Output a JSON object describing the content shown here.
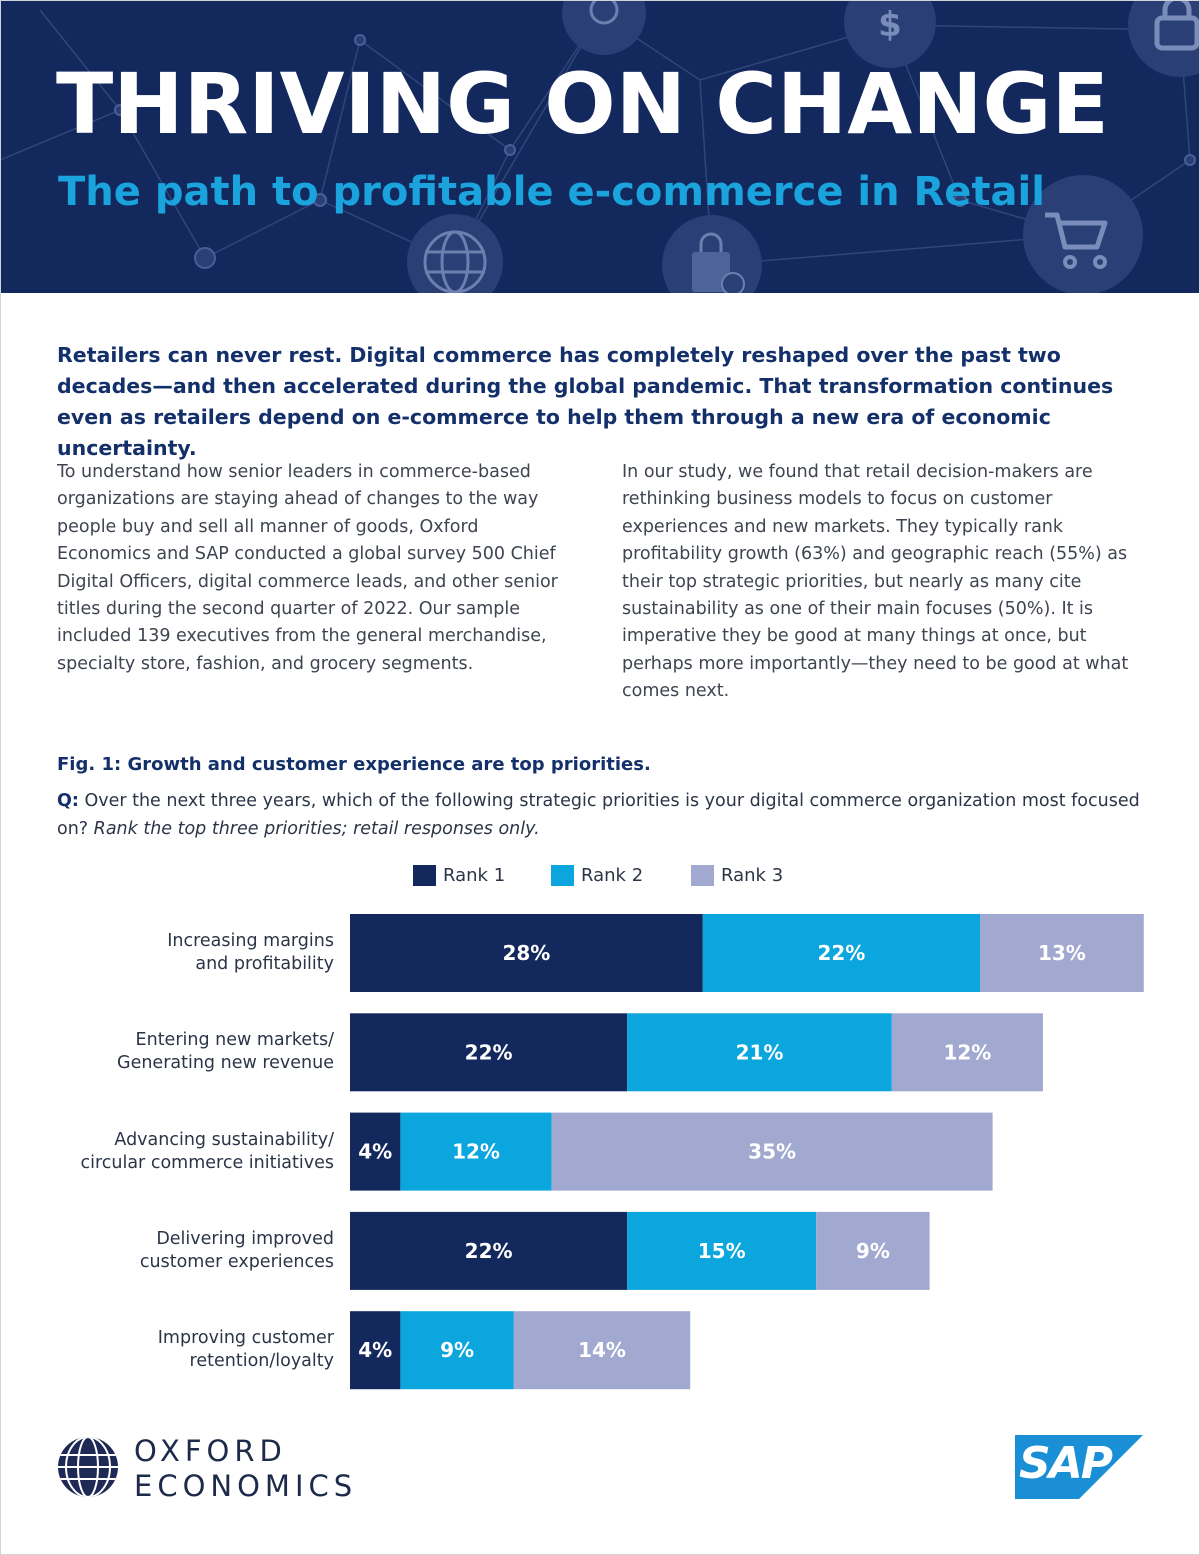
{
  "header": {
    "title": "THRIVING ON CHANGE",
    "subtitle": "The path to profitable e-commerce in Retail",
    "icons": [
      "badge-icon",
      "dollar-icon",
      "lock-icon",
      "globe-icon",
      "shopping-bag-icon",
      "shopping-cart-icon"
    ]
  },
  "lead": "Retailers can never rest. Digital commerce has completely reshaped over the past two decades—and then accelerated during the global pandemic. That transformation continues even as retailers depend on e-commerce to help them through a new era of economic uncertainty.",
  "body": {
    "left": "To understand how senior leaders in commerce-based organizations are staying ahead of changes to the way people buy and sell all manner of goods, Oxford Economics and SAP conducted a global survey 500 Chief Digital Officers, digital commerce leads, and other senior titles during the second quarter of 2022. Our sample included 139 executives from the general merchandise, specialty store, fashion, and grocery segments.",
    "right": "In our study, we found that retail decision-makers are rethinking business models to focus on customer experiences and new markets. They typically rank profitability growth (63%) and geographic reach (55%) as their top strategic priorities, but nearly as many cite sustainability as one of their main focuses (50%). It is imperative they be good at many things at once, but perhaps more importantly—they need to be good at what comes next."
  },
  "figure": {
    "title": "Fig. 1: Growth and customer experience are top priorities.",
    "q_label": "Q:",
    "question": " Over the next three years, which of the following strategic priorities is your digital commerce organization most focused on? ",
    "question_italic": "Rank the top three priorities; retail responses only."
  },
  "chart_data": {
    "type": "bar",
    "orientation": "horizontal",
    "stacked": true,
    "categories": [
      "Increasing margins\nand profitability",
      "Entering new markets/\nGenerating new revenue",
      "Advancing sustainability/\ncircular commerce initiatives",
      "Delivering improved\ncustomer experiences",
      "Improving customer\nretention/loyalty"
    ],
    "series": [
      {
        "name": "Rank 1",
        "color": "#13285c",
        "values": [
          28,
          22,
          4,
          22,
          4
        ]
      },
      {
        "name": "Rank 2",
        "color": "#0aa6dd",
        "values": [
          22,
          21,
          12,
          15,
          9
        ]
      },
      {
        "name": "Rank 3",
        "color": "#a1a9d1",
        "values": [
          13,
          12,
          35,
          9,
          14
        ]
      }
    ],
    "value_suffix": "%",
    "legend_position": "top",
    "grid": false
  },
  "footer": {
    "oxford_line1": "OXFORD",
    "oxford_line2": "ECONOMICS",
    "sap": "SAP",
    "sap_color": "#1b8fd6"
  }
}
